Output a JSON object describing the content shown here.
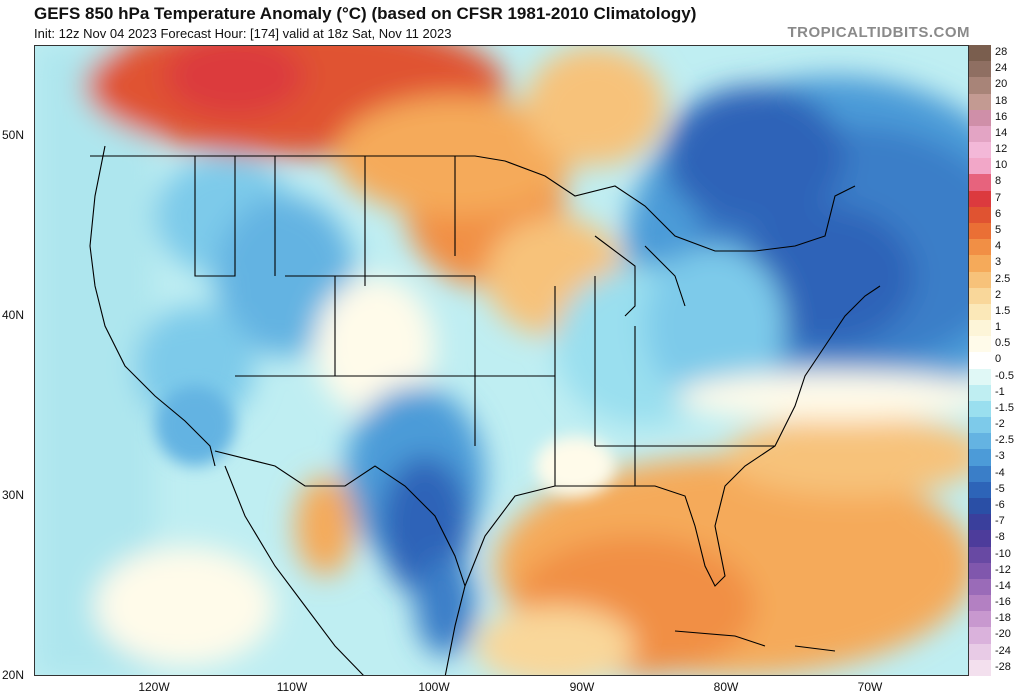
{
  "header": {
    "title": "GEFS 850 hPa Temperature Anomaly (°C) (based on CFSR 1981-2010 Climatology)",
    "subtitle": "Init: 12z Nov 04 2023   Forecast Hour: [174]   valid at 18z Sat, Nov 11 2023",
    "brand": "TROPICALTIDBITS.COM"
  },
  "axes": {
    "lat_labels": [
      "50N",
      "40N",
      "30N",
      "20N"
    ],
    "lon_labels": [
      "120W",
      "110W",
      "100W",
      "90W",
      "80W",
      "70W"
    ]
  },
  "colorbar": {
    "labels": [
      "28",
      "24",
      "20",
      "18",
      "16",
      "14",
      "12",
      "10",
      "8",
      "7",
      "6",
      "5",
      "4",
      "3",
      "2.5",
      "2",
      "1.5",
      "1",
      "0.5",
      "0",
      "-0.5",
      "-1",
      "-1.5",
      "-2",
      "-2.5",
      "-3",
      "-4",
      "-5",
      "-6",
      "-7",
      "-8",
      "-10",
      "-12",
      "-14",
      "-16",
      "-18",
      "-20",
      "-24",
      "-28"
    ],
    "colors": [
      "#7a5e4e",
      "#8f6f62",
      "#a88478",
      "#c39a92",
      "#cf8fa8",
      "#e3a4c4",
      "#f3b8d8",
      "#f2a7c8",
      "#e7637d",
      "#dc3a3e",
      "#e05331",
      "#ea6f35",
      "#f18f45",
      "#f5aa5a",
      "#f7c27a",
      "#f9d79a",
      "#fbe8b8",
      "#fdf5d8",
      "#fffbea",
      "#ffffff",
      "#e0f8f6",
      "#bfeef2",
      "#9adfef",
      "#7dcaea",
      "#64b3e2",
      "#4c9bd8",
      "#3a7ec8",
      "#2d64b8",
      "#2a4fa6",
      "#3a3f9c",
      "#4d3c9b",
      "#6849a3",
      "#8057ad",
      "#9a6bb8",
      "#b380c2",
      "#c898cf",
      "#dab2dc",
      "#e8cbe6",
      "#f3e0ee"
    ]
  }
}
